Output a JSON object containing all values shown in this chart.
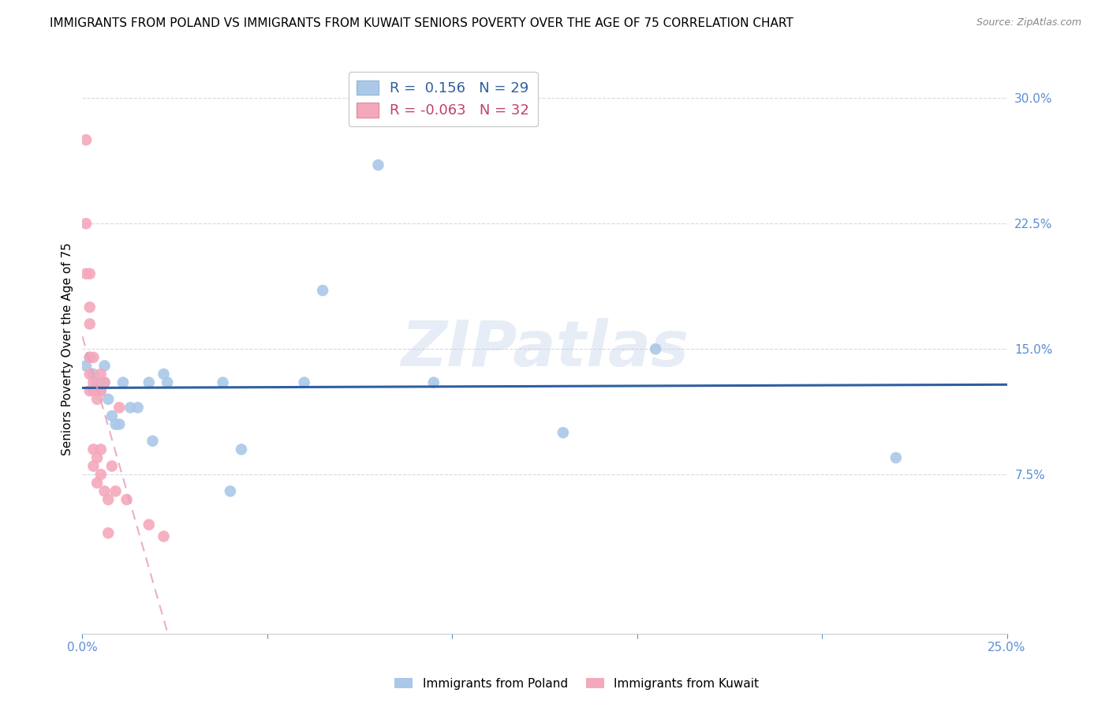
{
  "title": "IMMIGRANTS FROM POLAND VS IMMIGRANTS FROM KUWAIT SENIORS POVERTY OVER THE AGE OF 75 CORRELATION CHART",
  "source": "Source: ZipAtlas.com",
  "ylabel": "Seniors Poverty Over the Age of 75",
  "xlim": [
    0.0,
    0.25
  ],
  "ylim": [
    -0.02,
    0.32
  ],
  "ytick_right": [
    0.075,
    0.15,
    0.225,
    0.3
  ],
  "ytick_right_labels": [
    "7.5%",
    "15.0%",
    "22.5%",
    "30.0%"
  ],
  "legend_r_poland": " 0.156",
  "legend_n_poland": "29",
  "legend_r_kuwait": "-0.063",
  "legend_n_kuwait": "32",
  "poland_color": "#aac8e8",
  "kuwait_color": "#f4a8bc",
  "poland_line_color": "#2e5fa0",
  "kuwait_line_color": "#e8a0b8",
  "watermark": "ZIPatlas",
  "poland_x": [
    0.001,
    0.002,
    0.003,
    0.004,
    0.004,
    0.005,
    0.006,
    0.006,
    0.007,
    0.008,
    0.009,
    0.01,
    0.011,
    0.013,
    0.015,
    0.018,
    0.019,
    0.022,
    0.023,
    0.038,
    0.04,
    0.043,
    0.06,
    0.065,
    0.08,
    0.095,
    0.13,
    0.155,
    0.22
  ],
  "poland_y": [
    0.14,
    0.145,
    0.135,
    0.125,
    0.13,
    0.125,
    0.14,
    0.13,
    0.12,
    0.11,
    0.105,
    0.105,
    0.13,
    0.115,
    0.115,
    0.13,
    0.095,
    0.135,
    0.13,
    0.13,
    0.065,
    0.09,
    0.13,
    0.185,
    0.26,
    0.13,
    0.1,
    0.15,
    0.085
  ],
  "kuwait_x": [
    0.001,
    0.001,
    0.001,
    0.002,
    0.002,
    0.002,
    0.002,
    0.002,
    0.002,
    0.003,
    0.003,
    0.003,
    0.003,
    0.003,
    0.004,
    0.004,
    0.004,
    0.004,
    0.005,
    0.005,
    0.005,
    0.005,
    0.006,
    0.006,
    0.007,
    0.007,
    0.008,
    0.009,
    0.01,
    0.012,
    0.018,
    0.022
  ],
  "kuwait_y": [
    0.275,
    0.225,
    0.195,
    0.195,
    0.175,
    0.165,
    0.145,
    0.135,
    0.125,
    0.145,
    0.13,
    0.125,
    0.09,
    0.08,
    0.125,
    0.12,
    0.085,
    0.07,
    0.135,
    0.125,
    0.09,
    0.075,
    0.13,
    0.065,
    0.06,
    0.04,
    0.08,
    0.065,
    0.115,
    0.06,
    0.045,
    0.038
  ],
  "title_fontsize": 11,
  "axis_label_fontsize": 11,
  "tick_fontsize": 11,
  "legend_fontsize": 13,
  "source_fontsize": 9,
  "scatter_size": 110,
  "background_color": "#ffffff",
  "grid_color": "#d8d8e8",
  "right_tick_color": "#5b8ed5",
  "bottom_tick_color": "#5b8ed5"
}
